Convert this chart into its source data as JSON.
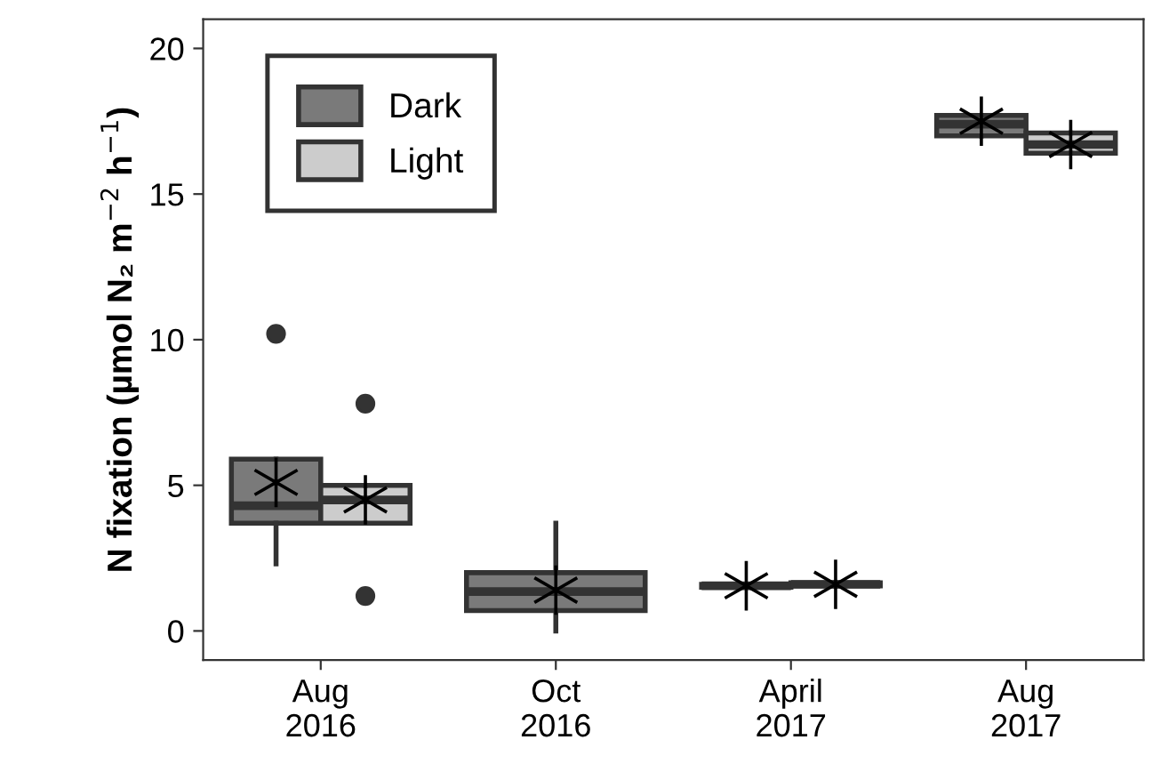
{
  "chart_data": {
    "type": "box",
    "ylabel": "N fixation (µmol N₂ m$^{−2}$ h$^{−1}$)",
    "categories": [
      "Aug\n2016",
      "Oct\n2016",
      "April\n2017",
      "Aug\n2017"
    ],
    "ylim": [
      -1,
      21
    ],
    "yticks": [
      0,
      5,
      10,
      15,
      20
    ],
    "grid": false,
    "legend": "top left",
    "series": [
      {
        "name": "Dark",
        "color": "#7a7a7a",
        "boxes": [
          {
            "low": 2.3,
            "q1": 3.7,
            "median": 4.3,
            "q3": 5.9,
            "high": 5.9,
            "mean": 5.1,
            "outliers": [
              10.2
            ]
          },
          {
            "low": 0,
            "q1": 0.7,
            "median": 1.35,
            "q3": 2.0,
            "high": 3.7,
            "mean": 1.4
          },
          {
            "low": 1.5,
            "q1": 1.5,
            "median": 1.55,
            "q3": 1.6,
            "high": 1.6,
            "mean": 1.55
          },
          {
            "low": 17.0,
            "q1": 17.0,
            "median": 17.4,
            "q3": 17.7,
            "high": 17.7,
            "mean": 17.5
          }
        ]
      },
      {
        "name": "Light",
        "color": "#cccccc",
        "boxes": [
          {
            "low": 3.7,
            "q1": 3.7,
            "median": 4.5,
            "q3": 5.0,
            "high": 5.0,
            "mean": 4.5,
            "outliers": [
              7.8,
              1.2
            ]
          },
          null,
          {
            "low": 1.55,
            "q1": 1.55,
            "median": 1.6,
            "q3": 1.65,
            "high": 1.65,
            "mean": 1.6
          },
          {
            "low": 16.4,
            "q1": 16.4,
            "median": 16.7,
            "q3": 17.1,
            "high": 17.1,
            "mean": 16.7
          }
        ]
      }
    ]
  }
}
